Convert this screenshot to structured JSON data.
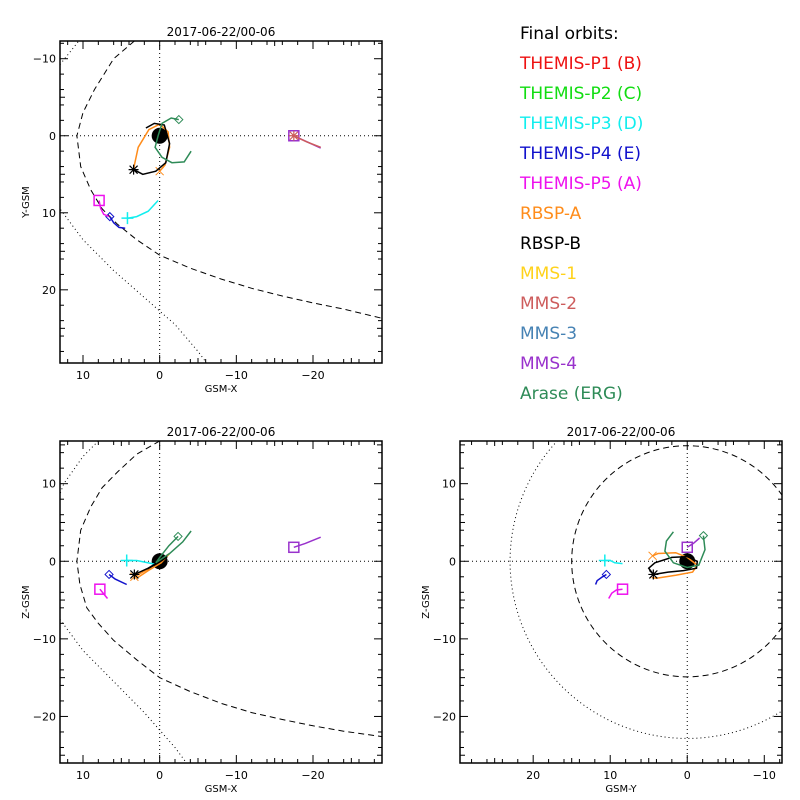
{
  "legend": {
    "title": "Final orbits:",
    "items": [
      {
        "label": "THEMIS-P1 (B)",
        "color": "#ee1111"
      },
      {
        "label": "THEMIS-P2 (C)",
        "color": "#11dd11"
      },
      {
        "label": "THEMIS-P3 (D)",
        "color": "#11eeee"
      },
      {
        "label": "THEMIS-P4 (E)",
        "color": "#1111cc"
      },
      {
        "label": "THEMIS-P5 (A)",
        "color": "#ee11ee"
      },
      {
        "label": "RBSP-A",
        "color": "#ff8c1a"
      },
      {
        "label": "RBSP-B",
        "color": "#000000"
      },
      {
        "label": "MMS-1",
        "color": "#ffd21a"
      },
      {
        "label": "MMS-2",
        "color": "#cd5c5c"
      },
      {
        "label": "MMS-3",
        "color": "#4682b4"
      },
      {
        "label": "MMS-4",
        "color": "#9932cc"
      },
      {
        "label": "Arase (ERG)",
        "color": "#2e8b57"
      }
    ]
  },
  "chart_data": [
    {
      "type": "line",
      "title": "2017-06-22/00-06",
      "xlabel": "GSM-X",
      "ylabel": "Y-GSM",
      "xlim": [
        13,
        -29
      ],
      "ylim": [
        -12.3,
        29.5
      ],
      "xticks": [
        10,
        0,
        -10,
        -20
      ],
      "yticks": [
        -10,
        0,
        10,
        20
      ],
      "tick_labels_x": [
        "10",
        "0",
        "−10",
        "−20"
      ],
      "tick_labels_y": [
        "−10",
        "0",
        "10",
        "20"
      ],
      "series": [
        {
          "name": "THEMIS-P3 (D)",
          "color": "#11eeee",
          "marker": "plus",
          "points": [
            [
              4.2,
              10.7
            ],
            [
              3,
              10.5
            ],
            [
              1.5,
              9.8
            ],
            [
              0.2,
              8.4
            ]
          ]
        },
        {
          "name": "THEMIS-P4 (E)",
          "color": "#1111cc",
          "marker": "diamond",
          "points": [
            [
              6.5,
              10.5
            ],
            [
              6,
              11.3
            ],
            [
              5.3,
              11.9
            ],
            [
              4.5,
              12
            ]
          ]
        },
        {
          "name": "THEMIS-P5 (A)",
          "color": "#ee11ee",
          "marker": "square",
          "points": [
            [
              7.9,
              8.4
            ],
            [
              7.7,
              9.4
            ],
            [
              7.3,
              10.2
            ],
            [
              6.6,
              10.5
            ]
          ]
        },
        {
          "name": "RBSP-A",
          "color": "#ff8c1a",
          "marker": "x",
          "points": [
            [
              0,
              4.6
            ],
            [
              -0.7,
              3.8
            ],
            [
              -1.3,
              1.5
            ],
            [
              -1.1,
              -0.5
            ],
            [
              0,
              -1.5
            ],
            [
              1.4,
              -0.8
            ],
            [
              2.8,
              1.5
            ],
            [
              3.3,
              3.8
            ],
            [
              3.4,
              4.5
            ]
          ]
        },
        {
          "name": "RBSP-B",
          "color": "#000000",
          "marker": "asterisk",
          "points": [
            [
              3.4,
              4.4
            ],
            [
              2.2,
              5.0
            ],
            [
              0.5,
              4.6
            ],
            [
              -0.8,
              3.5
            ],
            [
              -1.3,
              1
            ],
            [
              -0.6,
              -1.4
            ],
            [
              0.7,
              -1.6
            ],
            [
              1.8,
              -1.0
            ]
          ]
        },
        {
          "name": "MMS-4",
          "color": "#9932cc",
          "marker": "square",
          "points": [
            [
              -17.5,
              0
            ],
            [
              -19,
              0.7
            ],
            [
              -21,
              1.6
            ]
          ]
        },
        {
          "name": "MMS-2",
          "color": "#cd5c5c",
          "marker": "asterisk",
          "points": [
            [
              -17.5,
              0
            ],
            [
              -19.2,
              0.8
            ],
            [
              -21,
              1.5
            ]
          ]
        },
        {
          "name": "Arase (ERG)",
          "color": "#2e8b57",
          "marker": "diamond",
          "points": [
            [
              -2.5,
              -2.1
            ],
            [
              -1.5,
              -2.3
            ],
            [
              -0.3,
              -1.6
            ],
            [
              0.2,
              0
            ],
            [
              0.6,
              1.5
            ],
            [
              -0.3,
              2.8
            ],
            [
              -1.6,
              3.5
            ],
            [
              -3.2,
              3.4
            ],
            [
              -4.1,
              2
            ]
          ]
        }
      ],
      "boundaries": [
        {
          "name": "magnetopause",
          "style": "dashed"
        },
        {
          "name": "bow-shock",
          "style": "dotted"
        }
      ]
    },
    {
      "type": "line",
      "title": "2017-06-22/00-06",
      "xlabel": "GSM-X",
      "ylabel": "Z-GSM",
      "xlim": [
        13,
        -29
      ],
      "ylim": [
        15.5,
        -26
      ],
      "xticks": [
        10,
        0,
        -10,
        -20
      ],
      "yticks": [
        10,
        0,
        -10,
        -20
      ],
      "tick_labels_x": [
        "10",
        "0",
        "−10",
        "−20"
      ],
      "tick_labels_y": [
        "10",
        "0",
        "−10",
        "−20"
      ],
      "series": [
        {
          "name": "THEMIS-P3 (D)",
          "color": "#11eeee",
          "marker": "plus",
          "points": [
            [
              4.3,
              0.1
            ],
            [
              3,
              0.1
            ],
            [
              1,
              -0.3
            ],
            [
              0.5,
              -0.4
            ]
          ]
        },
        {
          "name": "THEMIS-P4 (E)",
          "color": "#1111cc",
          "marker": "diamond",
          "points": [
            [
              6.6,
              -1.7
            ],
            [
              5.8,
              -2.3
            ],
            [
              4.3,
              -3
            ]
          ]
        },
        {
          "name": "THEMIS-P5 (A)",
          "color": "#ee11ee",
          "marker": "square",
          "points": [
            [
              7.8,
              -3.6
            ],
            [
              7.3,
              -4.2
            ],
            [
              6.8,
              -4.8
            ]
          ]
        },
        {
          "name": "RBSP-A",
          "color": "#ff8c1a",
          "marker": "x",
          "points": [
            [
              3.3,
              -2.0
            ],
            [
              1.5,
              -1
            ],
            [
              0,
              0
            ],
            [
              -1,
              0.8
            ],
            [
              -1.3,
              1.0
            ],
            [
              -0.2,
              -0.2
            ],
            [
              1.5,
              -1.2
            ],
            [
              3,
              -2.2
            ]
          ]
        },
        {
          "name": "RBSP-B",
          "color": "#000000",
          "marker": "asterisk",
          "points": [
            [
              3.3,
              -1.7
            ],
            [
              1.5,
              -0.9
            ],
            [
              0,
              0
            ],
            [
              -1,
              0.6
            ],
            [
              -0.3,
              0.1
            ],
            [
              1.6,
              -1
            ]
          ]
        },
        {
          "name": "MMS-4",
          "color": "#9932cc",
          "marker": "square",
          "points": [
            [
              -17.5,
              1.8
            ],
            [
              -19,
              2.3
            ],
            [
              -21,
              3.1
            ]
          ]
        },
        {
          "name": "Arase (ERG)",
          "color": "#2e8b57",
          "marker": "diamond",
          "points": [
            [
              -2.4,
              3.2
            ],
            [
              -1.2,
              2
            ],
            [
              0,
              0.5
            ],
            [
              0.5,
              -0.2
            ],
            [
              -1.3,
              1.0
            ],
            [
              -3,
              2.5
            ],
            [
              -4.1,
              3.9
            ]
          ]
        }
      ],
      "boundaries": [
        {
          "name": "magnetopause",
          "style": "dashed"
        },
        {
          "name": "bow-shock",
          "style": "dotted"
        }
      ]
    },
    {
      "type": "line",
      "title": "2017-06-22/00-06",
      "xlabel": "GSM-Y",
      "ylabel": "Z-GSM",
      "xlim": [
        29.5,
        -12.3
      ],
      "ylim": [
        15.5,
        -26
      ],
      "xticks": [
        20,
        10,
        0,
        -10
      ],
      "yticks": [
        10,
        0,
        -10,
        -20
      ],
      "tick_labels_x": [
        "20",
        "10",
        "0",
        "−10"
      ],
      "tick_labels_y": [
        "10",
        "0",
        "−10",
        "−20"
      ],
      "series": [
        {
          "name": "THEMIS-P3 (D)",
          "color": "#11eeee",
          "marker": "plus",
          "points": [
            [
              10.7,
              0.1
            ],
            [
              10,
              0.1
            ],
            [
              9.4,
              -0.2
            ],
            [
              8.4,
              -0.3
            ]
          ]
        },
        {
          "name": "THEMIS-P4 (E)",
          "color": "#1111cc",
          "marker": "diamond",
          "points": [
            [
              10.5,
              -1.7
            ],
            [
              11,
              -2
            ],
            [
              11.7,
              -2.5
            ],
            [
              11.9,
              -3
            ]
          ]
        },
        {
          "name": "THEMIS-P5 (A)",
          "color": "#ee11ee",
          "marker": "square",
          "points": [
            [
              8.4,
              -3.6
            ],
            [
              9.2,
              -3.7
            ],
            [
              9.8,
              -4.1
            ],
            [
              10.2,
              -4.8
            ]
          ]
        },
        {
          "name": "RBSP-A",
          "color": "#ff8c1a",
          "marker": "x",
          "points": [
            [
              4.5,
              0.7
            ],
            [
              3.8,
              1
            ],
            [
              1.5,
              1.1
            ],
            [
              0,
              0.5
            ],
            [
              -1.3,
              -0.5
            ],
            [
              -0.7,
              -1.4
            ],
            [
              1.5,
              -1.8
            ],
            [
              4,
              -2.2
            ],
            [
              4.6,
              -2.1
            ]
          ]
        },
        {
          "name": "RBSP-B",
          "color": "#000000",
          "marker": "asterisk",
          "points": [
            [
              4.4,
              -1.7
            ],
            [
              5,
              -0.9
            ],
            [
              4.2,
              -0.2
            ],
            [
              2,
              0.5
            ],
            [
              0,
              0.6
            ],
            [
              -1.3,
              0
            ],
            [
              -1.2,
              -0.9
            ],
            [
              0.5,
              -1.2
            ],
            [
              2.5,
              -1.4
            ],
            [
              4.4,
              -1.7
            ]
          ]
        },
        {
          "name": "MMS-4",
          "color": "#9932cc",
          "marker": "square",
          "points": [
            [
              0,
              1.8
            ],
            [
              -0.8,
              2.3
            ],
            [
              -1.6,
              3.0
            ]
          ]
        },
        {
          "name": "Arase (ERG)",
          "color": "#2e8b57",
          "marker": "diamond",
          "points": [
            [
              -2.1,
              3.3
            ],
            [
              -2.3,
              1.5
            ],
            [
              -1.5,
              -0.5
            ],
            [
              0,
              -0.8
            ],
            [
              1.8,
              -0.2
            ],
            [
              2.9,
              1.3
            ],
            [
              2.7,
              2.6
            ],
            [
              1.8,
              3.8
            ]
          ]
        }
      ],
      "boundaries": [
        {
          "name": "magnetopause",
          "style": "dashed"
        },
        {
          "name": "bow-shock",
          "style": "dotted"
        }
      ]
    }
  ]
}
